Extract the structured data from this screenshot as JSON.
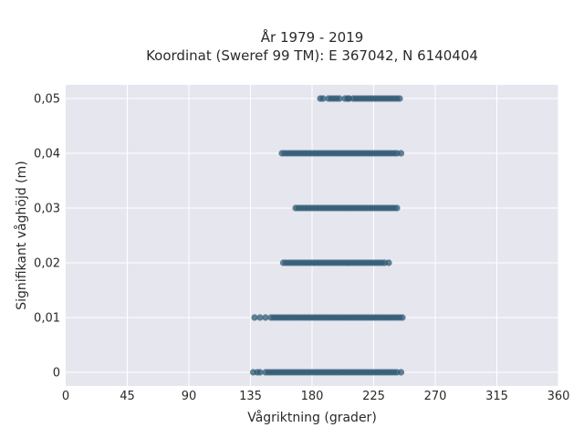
{
  "chart_data": {
    "type": "scatter",
    "title_line1": "År 1979 - 2019",
    "title_line2": "Koordinat (Sweref 99 TM): E 367042, N 6140404",
    "xlabel": "Vågriktning (grader)",
    "ylabel": "Signifikant våghöjd (m)",
    "xlim": [
      0,
      360
    ],
    "ylim": [
      -0.0025,
      0.0525
    ],
    "xticks": [
      0,
      45,
      90,
      135,
      180,
      225,
      270,
      315,
      360
    ],
    "xtick_labels": [
      "0",
      "45",
      "90",
      "135",
      "180",
      "225",
      "270",
      "315",
      "360"
    ],
    "yticks": [
      0,
      0.01,
      0.02,
      0.03,
      0.04,
      0.05
    ],
    "ytick_labels": [
      "0",
      "0,01",
      "0,02",
      "0,03",
      "0,04",
      "0,05"
    ],
    "grid": true,
    "marker_color": "#2f5a73",
    "background_color": "#e6e6ef",
    "series": [
      {
        "y": 0.05,
        "x": [
          186,
          188,
          192,
          194,
          196,
          198,
          200,
          204,
          206,
          207,
          210,
          212,
          214,
          216,
          218,
          220,
          222,
          224,
          226,
          228,
          230,
          232,
          234,
          236,
          238,
          240,
          242,
          244
        ]
      },
      {
        "y": 0.04,
        "x": [
          158,
          160,
          162,
          164,
          166,
          168,
          170,
          172,
          174,
          176,
          178,
          180,
          182,
          184,
          186,
          188,
          190,
          192,
          194,
          196,
          198,
          200,
          202,
          204,
          206,
          208,
          210,
          212,
          214,
          216,
          218,
          220,
          222,
          224,
          226,
          228,
          230,
          232,
          234,
          236,
          238,
          240,
          242,
          245
        ]
      },
      {
        "y": 0.03,
        "x": [
          168,
          170,
          172,
          174,
          176,
          178,
          180,
          182,
          184,
          186,
          188,
          190,
          192,
          194,
          196,
          198,
          200,
          202,
          204,
          206,
          208,
          210,
          212,
          214,
          216,
          218,
          220,
          222,
          224,
          226,
          228,
          230,
          232,
          234,
          236,
          238,
          240,
          242
        ]
      },
      {
        "y": 0.02,
        "x": [
          159,
          161,
          163,
          165,
          167,
          169,
          171,
          173,
          175,
          177,
          179,
          181,
          183,
          185,
          187,
          189,
          191,
          193,
          195,
          197,
          199,
          201,
          203,
          205,
          207,
          209,
          211,
          213,
          215,
          217,
          219,
          221,
          223,
          225,
          227,
          229,
          231,
          233,
          236
        ]
      },
      {
        "y": 0.01,
        "x": [
          138,
          142,
          146,
          150,
          152,
          154,
          156,
          158,
          160,
          162,
          164,
          166,
          168,
          170,
          172,
          174,
          176,
          178,
          180,
          182,
          184,
          186,
          188,
          190,
          192,
          194,
          196,
          198,
          200,
          202,
          204,
          206,
          208,
          210,
          212,
          214,
          216,
          218,
          220,
          222,
          224,
          226,
          228,
          230,
          232,
          234,
          236,
          238,
          240,
          242,
          244,
          246
        ]
      },
      {
        "y": 0.0,
        "x": [
          137,
          140,
          142,
          146,
          148,
          150,
          152,
          154,
          156,
          158,
          160,
          162,
          164,
          166,
          168,
          170,
          172,
          174,
          176,
          178,
          180,
          182,
          184,
          186,
          188,
          190,
          192,
          194,
          196,
          198,
          200,
          202,
          204,
          206,
          208,
          210,
          212,
          214,
          216,
          218,
          220,
          222,
          224,
          226,
          228,
          230,
          232,
          234,
          236,
          238,
          240,
          242,
          245
        ]
      }
    ]
  }
}
